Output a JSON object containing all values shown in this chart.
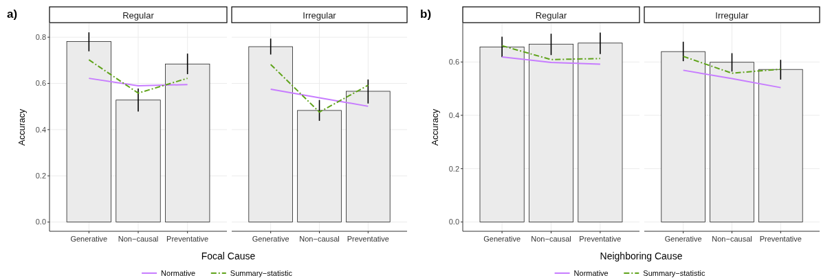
{
  "chart_data": [
    {
      "type": "bar",
      "title": "Regular",
      "xlabel": "Focal Cause",
      "ylabel": "Accuracy",
      "annotations": [
        "a)"
      ],
      "categories": [
        "Generative",
        "Non−causal",
        "Preventative"
      ],
      "ylim": [
        -0.04,
        0.86
      ],
      "yticks": [
        {
          "value": 0,
          "label": "0.0"
        },
        0.2,
        0.4,
        0.6,
        0.8
      ],
      "grid": true,
      "legend": "bottom",
      "series": [
        {
          "color": "#ebebeb",
          "values": [
            0.781,
            0.528,
            0.684
          ],
          "errors": [
            [
              0.739,
              0.821
            ],
            [
              0.478,
              0.578
            ],
            [
              0.64,
              0.729
            ]
          ]
        },
        {
          "type": "line",
          "name": "Normative",
          "color": "#c77cff",
          "line_style": "solid",
          "values": [
            0.622,
            0.59,
            0.595
          ]
        },
        {
          "type": "line",
          "name": "Summary−statistic",
          "color": "#5fa31a",
          "line_style": "dashed",
          "values": [
            0.702,
            0.558,
            0.622
          ]
        }
      ]
    },
    {
      "type": "bar",
      "title": "Irregular",
      "categories": [
        "Generative",
        "Non−causal",
        "Preventative"
      ],
      "ylim": [
        -0.04,
        0.86
      ],
      "yticks": [
        0,
        0.2,
        0.4,
        0.6,
        0.8
      ],
      "grid": true,
      "tick_labels": "x",
      "series": [
        {
          "color": "#ebebeb",
          "values": [
            0.759,
            0.483,
            0.566
          ],
          "errors": [
            [
              0.725,
              0.794
            ],
            [
              0.438,
              0.528
            ],
            [
              0.513,
              0.617
            ]
          ]
        },
        {
          "type": "line",
          "color": "#c77cff",
          "line_style": "solid",
          "values": [
            0.575,
            0.538,
            0.501
          ]
        },
        {
          "type": "line",
          "color": "#5fa31a",
          "line_style": "dashed",
          "values": [
            0.682,
            0.476,
            0.592
          ]
        }
      ]
    },
    {
      "type": "bar",
      "title": "Regular",
      "xlabel": "Neighboring Cause",
      "ylabel": "Accuracy",
      "annotations": [
        "b)"
      ],
      "categories": [
        "Generative",
        "Non−causal",
        "Preventative"
      ],
      "ylim": [
        -0.035,
        0.745
      ],
      "yticks": [
        {
          "value": 0,
          "label": "0.0"
        },
        0.2,
        0.4,
        0.6
      ],
      "grid": true,
      "legend": "bottom",
      "series": [
        {
          "color": "#ebebeb",
          "values": [
            0.656,
            0.667,
            0.671
          ],
          "errors": [
            [
              0.618,
              0.695
            ],
            [
              0.626,
              0.706
            ],
            [
              0.63,
              0.71
            ]
          ]
        },
        {
          "type": "line",
          "name": "Normative",
          "color": "#c77cff",
          "line_style": "solid",
          "values": [
            0.619,
            0.598,
            0.592
          ]
        },
        {
          "type": "line",
          "name": "Summary−statistic",
          "color": "#5fa31a",
          "line_style": "dashed",
          "values": [
            0.661,
            0.609,
            0.613
          ]
        }
      ]
    },
    {
      "type": "bar",
      "title": "Irregular",
      "categories": [
        "Generative",
        "Non−causal",
        "Preventative"
      ],
      "ylim": [
        -0.035,
        0.745
      ],
      "yticks": [
        0,
        0.2,
        0.4,
        0.6
      ],
      "grid": true,
      "tick_labels": "x",
      "series": [
        {
          "color": "#ebebeb",
          "values": [
            0.639,
            0.599,
            0.572
          ],
          "errors": [
            [
              0.603,
              0.676
            ],
            [
              0.564,
              0.633
            ],
            [
              0.534,
              0.608
            ]
          ]
        },
        {
          "type": "line",
          "color": "#c77cff",
          "line_style": "solid",
          "values": [
            0.569,
            0.538,
            0.504
          ]
        },
        {
          "type": "line",
          "color": "#5fa31a",
          "line_style": "dashed",
          "values": [
            0.621,
            0.558,
            0.573
          ]
        }
      ]
    }
  ]
}
